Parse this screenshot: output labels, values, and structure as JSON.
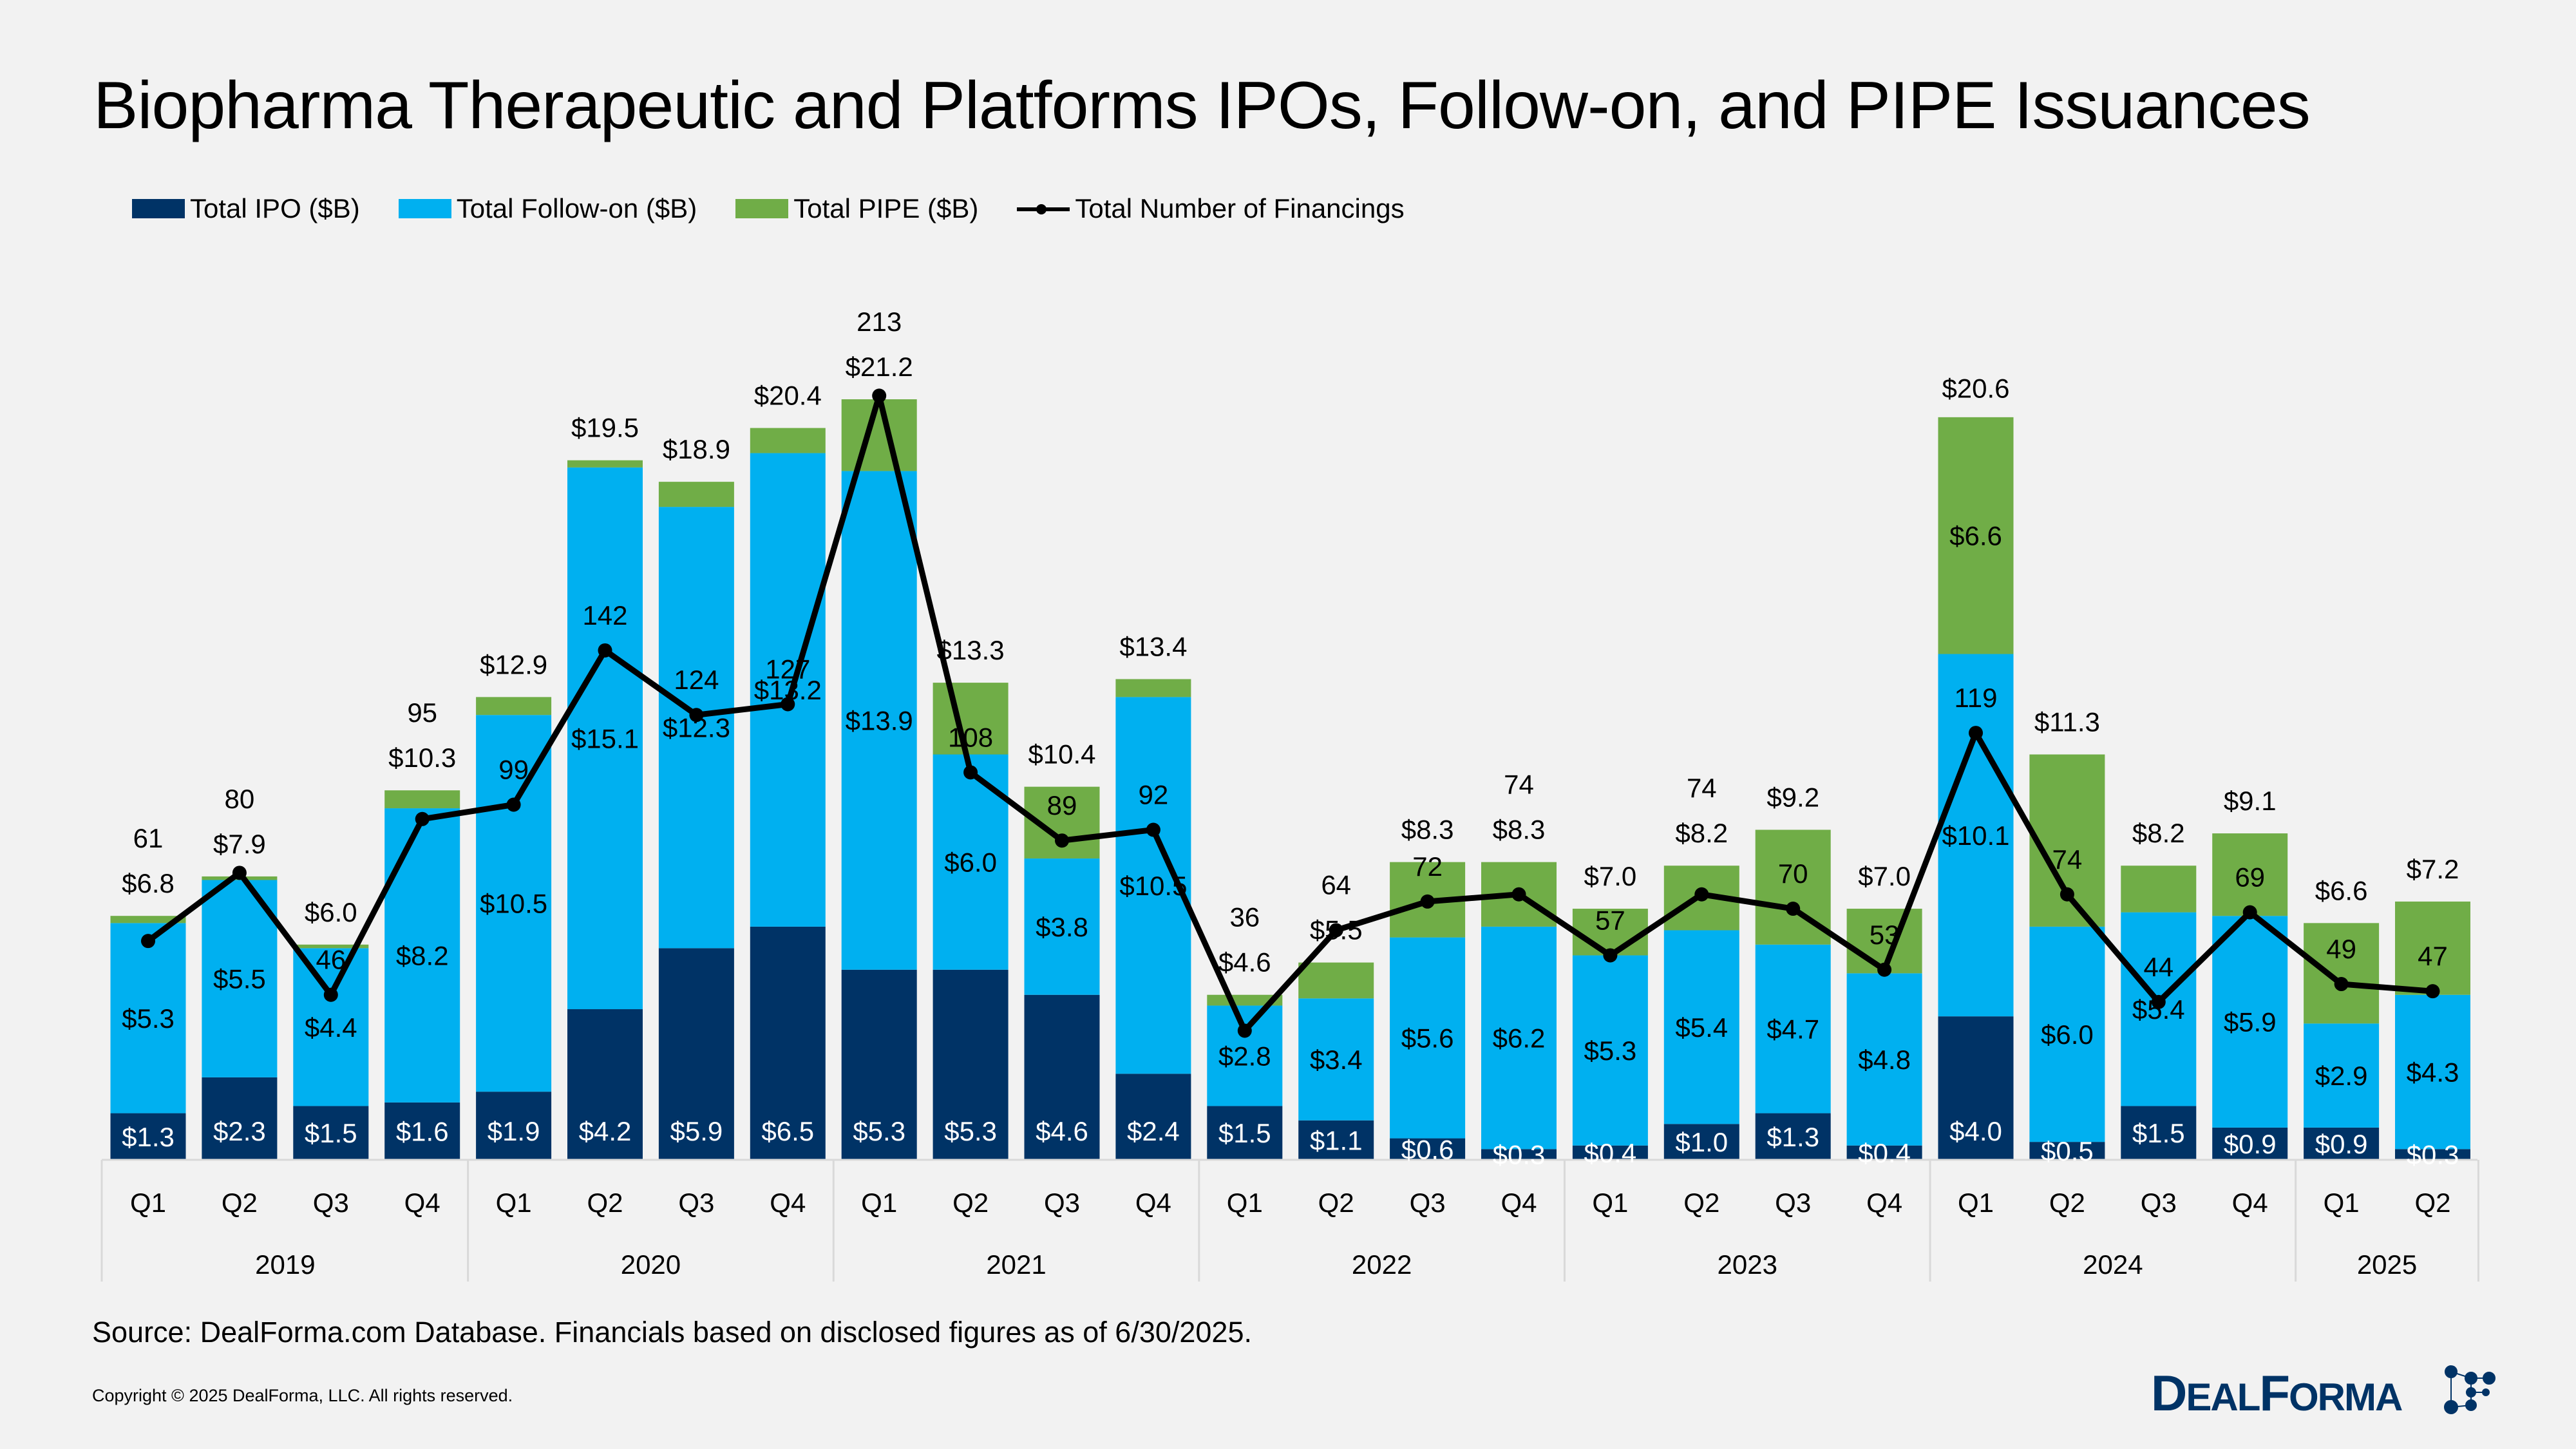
{
  "title": "Biopharma Therapeutic and Platforms IPOs, Follow-on, and PIPE Issuances",
  "legend": [
    {
      "label": "Total IPO ($B)",
      "color": "#003366"
    },
    {
      "label": "Total Follow-on ($B)",
      "color": "#00b0f0"
    },
    {
      "label": "Total PIPE ($B)",
      "color": "#70ad47"
    },
    {
      "label": "Total Number of Financings",
      "color": "#000000"
    }
  ],
  "source": "Source: DealForma.com Database. Financials based on disclosed figures as of 6/30/2025.",
  "copyright": "Copyright © 2025 DealForma, LLC. All rights reserved.",
  "logo": {
    "text": "DEALFORMA",
    "color": "#003366"
  },
  "chart_data": {
    "type": "bar",
    "stacked": true,
    "title": "Biopharma Therapeutic and Platforms IPOs, Follow-on, and PIPE Issuances",
    "xlabel": "",
    "ylabel": "",
    "legend_position": "top-left",
    "grid": false,
    "ylim": [
      0,
      26
    ],
    "y2lim": [
      0,
      260
    ],
    "years": [
      "2019",
      "2020",
      "2021",
      "2022",
      "2023",
      "2024",
      "2025"
    ],
    "year_quarter_counts": [
      4,
      4,
      4,
      4,
      4,
      4,
      2
    ],
    "categories": [
      "Q1",
      "Q2",
      "Q3",
      "Q4",
      "Q1",
      "Q2",
      "Q3",
      "Q4",
      "Q1",
      "Q2",
      "Q3",
      "Q4",
      "Q1",
      "Q2",
      "Q3",
      "Q4",
      "Q1",
      "Q2",
      "Q3",
      "Q4",
      "Q1",
      "Q2",
      "Q3",
      "Q4",
      "Q1",
      "Q2"
    ],
    "series": [
      {
        "name": "Total IPO ($B)",
        "type": "bar",
        "color": "#003366",
        "values": [
          1.3,
          2.3,
          1.5,
          1.6,
          1.9,
          4.2,
          5.9,
          6.5,
          5.3,
          5.3,
          4.6,
          2.4,
          1.5,
          1.1,
          0.6,
          0.3,
          0.4,
          1.0,
          1.3,
          0.4,
          4.0,
          0.5,
          1.5,
          0.9,
          0.9,
          0.3
        ],
        "labels": [
          "$1.3",
          "$2.3",
          "$1.5",
          "$1.6",
          "$1.9",
          "$4.2",
          "$5.9",
          "$6.5",
          "$5.3",
          "$5.3",
          "$4.6",
          "$2.4",
          "$1.5",
          "$1.1",
          "$0.6",
          "$0.3",
          "$0.4",
          "$1.0",
          "$1.3",
          "$0.4",
          "$4.0",
          "$0.5",
          "$1.5",
          "$0.9",
          "$0.9",
          "$0.3"
        ]
      },
      {
        "name": "Total Follow-on ($B)",
        "type": "bar",
        "color": "#00b0f0",
        "values": [
          5.3,
          5.5,
          4.4,
          8.2,
          10.5,
          15.1,
          12.3,
          13.2,
          13.9,
          6.0,
          3.8,
          10.5,
          2.8,
          3.4,
          5.6,
          6.2,
          5.3,
          5.4,
          4.7,
          4.8,
          10.1,
          6.0,
          5.4,
          5.9,
          2.9,
          4.3
        ],
        "labels": [
          "$5.3",
          "$5.5",
          "$4.4",
          "$8.2",
          "$10.5",
          "$15.1",
          "$12.3",
          "$13.2",
          "$13.9",
          "$6.0",
          "$3.8",
          "$10.5",
          "$2.8",
          "$3.4",
          "$5.6",
          "$6.2",
          "$5.3",
          "$5.4",
          "$4.7",
          "$4.8",
          "$10.1",
          "$6.0",
          "$5.4",
          "$5.9",
          "$2.9",
          "$4.3"
        ]
      },
      {
        "name": "Total PIPE ($B)",
        "type": "bar",
        "color": "#70ad47",
        "values": [
          0.2,
          0.1,
          0.1,
          0.5,
          0.5,
          0.2,
          0.7,
          0.7,
          2.0,
          2.0,
          2.0,
          0.5,
          0.3,
          1.0,
          2.1,
          1.8,
          1.3,
          1.8,
          3.2,
          1.8,
          6.6,
          4.8,
          1.3,
          2.3,
          2.8,
          2.6
        ],
        "labels": [
          null,
          null,
          null,
          null,
          null,
          null,
          null,
          null,
          null,
          null,
          null,
          null,
          null,
          null,
          null,
          null,
          null,
          null,
          null,
          null,
          "$6.6",
          null,
          null,
          null,
          null,
          null
        ]
      },
      {
        "name": "Total Number of Financings",
        "type": "line",
        "color": "#000000",
        "axis": "secondary",
        "values": [
          61,
          80,
          46,
          95,
          99,
          142,
          124,
          127,
          213,
          108,
          89,
          92,
          36,
          64,
          72,
          74,
          57,
          74,
          70,
          53,
          119,
          74,
          44,
          69,
          49,
          47
        ]
      }
    ],
    "totals": {
      "values": [
        6.8,
        7.9,
        6.0,
        10.3,
        12.9,
        19.5,
        18.9,
        20.4,
        21.2,
        13.3,
        10.4,
        13.4,
        4.6,
        5.5,
        8.3,
        8.3,
        7.0,
        8.2,
        9.2,
        7.0,
        20.6,
        11.3,
        8.2,
        9.1,
        6.6,
        7.2
      ],
      "labels": [
        "$6.8",
        "$7.9",
        "$6.0",
        "$10.3",
        "$12.9",
        "$19.5",
        "$18.9",
        "$20.4",
        "$21.2",
        "$13.3",
        "$10.4",
        "$13.4",
        "$4.6",
        "$5.5",
        "$8.3",
        "$8.3",
        "$7.0",
        "$8.2",
        "$9.2",
        "$7.0",
        "$20.6",
        "$11.3",
        "$8.2",
        "$9.1",
        "$6.6",
        "$7.2"
      ]
    }
  }
}
